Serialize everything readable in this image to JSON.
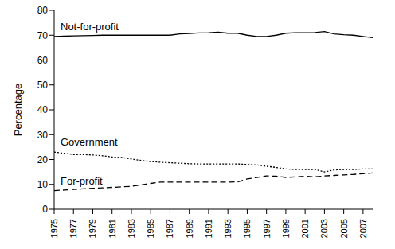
{
  "chart_data": {
    "type": "line",
    "y_label": "Percentage",
    "x": [
      1975,
      1976,
      1977,
      1978,
      1979,
      1980,
      1981,
      1982,
      1983,
      1984,
      1985,
      1986,
      1987,
      1988,
      1989,
      1990,
      1991,
      1992,
      1993,
      1994,
      1995,
      1996,
      1997,
      1998,
      1999,
      2000,
      2001,
      2002,
      2003,
      2004,
      2005,
      2006,
      2007,
      2008
    ],
    "xlim": [
      1975,
      2008
    ],
    "xticks": [
      1975,
      1977,
      1979,
      1981,
      1983,
      1985,
      1987,
      1989,
      1991,
      1993,
      1995,
      1997,
      1999,
      2001,
      2003,
      2005,
      2007
    ],
    "ylim": [
      0,
      80
    ],
    "yticks": [
      0,
      10,
      20,
      30,
      40,
      50,
      60,
      70,
      80
    ],
    "grid": false,
    "series": [
      {
        "name": "Not-for-profit",
        "color": "#000000",
        "line_style": "solid",
        "marker": "none",
        "values": [
          69.5,
          69.6,
          69.7,
          69.8,
          69.9,
          70,
          70,
          70,
          70,
          70,
          70,
          70,
          70,
          70.5,
          70.7,
          70.9,
          71,
          71.2,
          70.8,
          70.8,
          70,
          69.5,
          69.5,
          70,
          70.8,
          71,
          71,
          71.1,
          71.5,
          70.5,
          70.2,
          70,
          69.5,
          69
        ]
      },
      {
        "name": "Government",
        "color": "#000000",
        "line_style": "dotted",
        "marker": "none",
        "values": [
          23,
          22.5,
          22,
          22,
          21.8,
          21.5,
          21,
          20.8,
          20.2,
          19.6,
          19.2,
          18.9,
          18.7,
          18.5,
          18.3,
          18.2,
          18.2,
          18.2,
          18.2,
          18.2,
          18,
          17.8,
          17.3,
          16.8,
          16.2,
          16,
          16,
          16,
          15,
          15.8,
          16,
          16,
          16.2,
          16.2
        ]
      },
      {
        "name": "For-profit",
        "color": "#000000",
        "line_style": "dashed",
        "marker": "none",
        "values": [
          7.5,
          7.7,
          8,
          8.2,
          8.4,
          8.6,
          8.8,
          9,
          9.2,
          9.8,
          10.4,
          10.9,
          10.9,
          10.9,
          10.9,
          10.9,
          10.9,
          10.9,
          10.9,
          11,
          12.2,
          12.8,
          13.4,
          13.3,
          12.8,
          13,
          13.3,
          13,
          13.4,
          13.6,
          13.8,
          14,
          14.3,
          14.6
        ]
      }
    ]
  }
}
